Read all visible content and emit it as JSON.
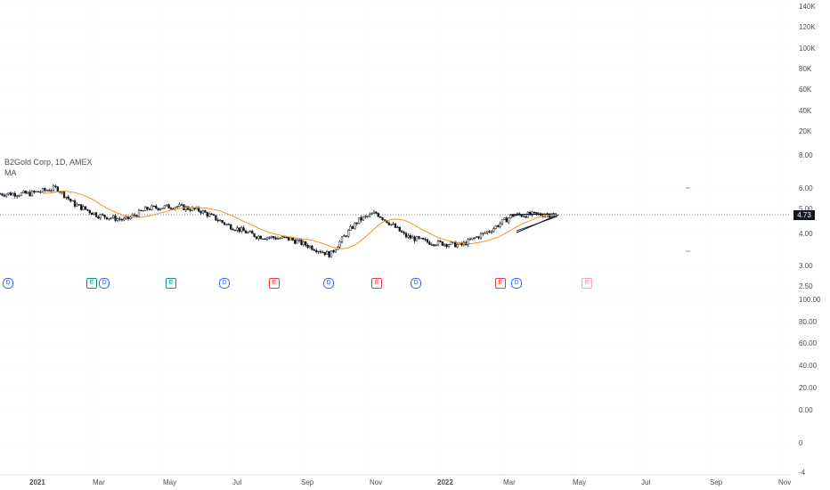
{
  "legend": {
    "symbol": "B2Gold Corp, 1D, AMEX",
    "indicator": "MA"
  },
  "last_price": "4.73",
  "price_axis": [
    "8.00",
    "6.00",
    "5.00",
    "4.00",
    "3.00",
    "2.50"
  ],
  "volume_axis": [
    "140K",
    "120K",
    "100K",
    "80K",
    "60K",
    "40K",
    "20K"
  ],
  "oscillator_axis": [
    "100.00",
    "80.00",
    "60.00",
    "40.00",
    "20.00",
    "0.00",
    "0",
    "-4"
  ],
  "time_axis": [
    "2021",
    "Mar",
    "May",
    "Jul",
    "Sep",
    "Nov",
    "2022",
    "Mar",
    "May",
    "Jul",
    "Sep",
    "Nov"
  ],
  "events": [
    {
      "type": "D",
      "style": "ev-d"
    },
    {
      "type": "E",
      "style": "ev-e-teal"
    },
    {
      "type": "D",
      "style": "ev-d"
    },
    {
      "type": "E",
      "style": "ev-e-teal"
    },
    {
      "type": "D",
      "style": "ev-d"
    },
    {
      "type": "E",
      "style": "ev-e-red"
    },
    {
      "type": "D",
      "style": "ev-d"
    },
    {
      "type": "E",
      "style": "ev-e-red"
    },
    {
      "type": "D",
      "style": "ev-d"
    },
    {
      "type": "E",
      "style": "ev-e-red"
    },
    {
      "type": "D",
      "style": "ev-d"
    },
    {
      "type": "E",
      "style": "ev-e-pink"
    }
  ],
  "colors": {
    "candles": "#131722",
    "moving_average": "#f7931a",
    "d_marker": "#2962ff",
    "e_marker_teal": "#089981",
    "e_marker_red": "#f23645"
  },
  "chart_data": {
    "type": "candlestick",
    "symbol": "B2Gold Corp",
    "interval": "1D",
    "exchange": "AMEX",
    "indicator": "MA",
    "last_price": 4.73,
    "price_scale": "log",
    "price_ticks": [
      2.5,
      3.0,
      4.0,
      5.0,
      6.0,
      8.0
    ],
    "volume_ticks": [
      20000,
      40000,
      60000,
      80000,
      100000,
      120000,
      140000
    ],
    "x_ticks": [
      "2021",
      "Mar",
      "May",
      "Jul",
      "Sep",
      "Nov",
      "2022",
      "Mar",
      "May",
      "Jul",
      "Sep",
      "Nov"
    ],
    "approx_close_path": [
      [
        "2021-01",
        5.7
      ],
      [
        "2021-01-25",
        6.0
      ],
      [
        "2021-02-10",
        5.2
      ],
      [
        "2021-03-01",
        4.7
      ],
      [
        "2021-03-25",
        4.5
      ],
      [
        "2021-04-15",
        5.0
      ],
      [
        "2021-05-10",
        5.1
      ],
      [
        "2021-06-01",
        4.9
      ],
      [
        "2021-06-25",
        4.3
      ],
      [
        "2021-07-20",
        3.9
      ],
      [
        "2021-08-20",
        3.8
      ],
      [
        "2021-09-25",
        3.3
      ],
      [
        "2021-10-20",
        4.5
      ],
      [
        "2021-11-05",
        4.8
      ],
      [
        "2021-12-01",
        3.9
      ],
      [
        "2021-12-20",
        3.7
      ],
      [
        "2022-01-20",
        3.6
      ],
      [
        "2022-02-15",
        4.1
      ],
      [
        "2022-03-05",
        4.7
      ],
      [
        "2022-03-25",
        4.73
      ]
    ]
  }
}
